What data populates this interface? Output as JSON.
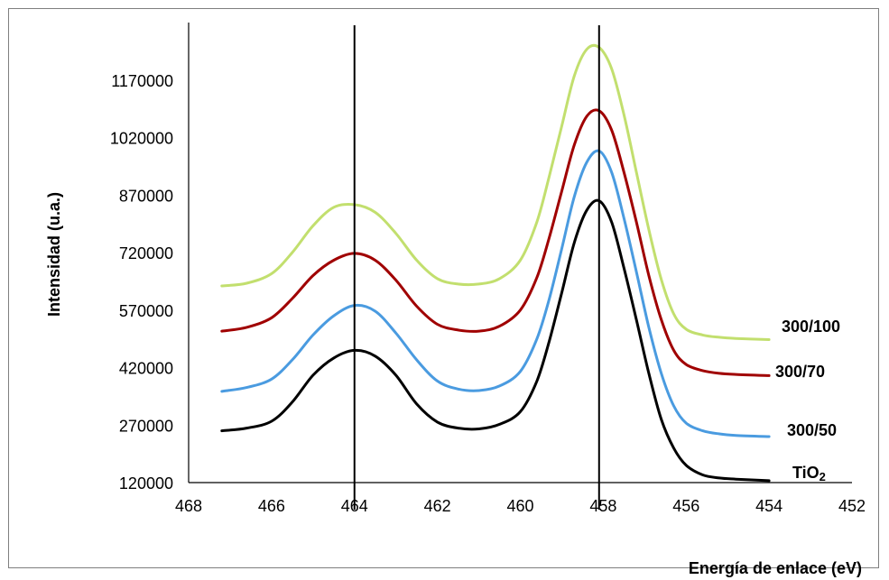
{
  "chart_data": {
    "type": "line",
    "title": "",
    "xlabel": "Energía de enlace (eV)",
    "ylabel": "Intensidad (u.a.)",
    "x_reversed": true,
    "xlim": [
      468,
      452
    ],
    "ylim": [
      120000,
      1320000
    ],
    "xticks": [
      468,
      466,
      464,
      462,
      460,
      458,
      456,
      454,
      452
    ],
    "yticks": [
      120000,
      270000,
      420000,
      570000,
      720000,
      870000,
      1020000,
      1170000
    ],
    "grid": false,
    "vertical_lines": [
      464,
      458.1
    ],
    "series": [
      {
        "name": "TiO2",
        "label_main": "TiO",
        "label_sub": "2",
        "color": "#000000",
        "x": [
          467.2,
          466.6,
          466.0,
          465.5,
          465.0,
          464.5,
          464.0,
          463.5,
          463.0,
          462.5,
          462.0,
          461.5,
          461.0,
          460.5,
          460.0,
          459.6,
          459.3,
          459.0,
          458.7,
          458.4,
          458.1,
          457.8,
          457.5,
          457.2,
          456.9,
          456.6,
          456.3,
          456.0,
          455.6,
          455.2,
          454.8,
          454.0
        ],
        "y": [
          255000,
          262000,
          280000,
          330000,
          400000,
          445000,
          465000,
          450000,
          400000,
          325000,
          278000,
          262000,
          260000,
          272000,
          305000,
          385000,
          490000,
          615000,
          745000,
          830000,
          855000,
          800000,
          680000,
          545000,
          405000,
          285000,
          210000,
          165000,
          140000,
          132000,
          129000,
          125000
        ]
      },
      {
        "name": "300/50",
        "label_main": "300/50",
        "label_sub": "",
        "color": "#4a9be0",
        "x": [
          467.2,
          466.6,
          466.0,
          465.5,
          465.0,
          464.5,
          464.0,
          463.5,
          463.0,
          462.5,
          462.0,
          461.5,
          461.0,
          460.5,
          460.0,
          459.6,
          459.3,
          459.0,
          458.7,
          458.4,
          458.1,
          457.8,
          457.5,
          457.2,
          456.9,
          456.6,
          456.3,
          456.0,
          455.6,
          455.2,
          454.8,
          454.0
        ],
        "y": [
          358000,
          368000,
          390000,
          440000,
          505000,
          555000,
          582000,
          567000,
          510000,
          440000,
          385000,
          364000,
          360000,
          372000,
          410000,
          495000,
          600000,
          730000,
          865000,
          955000,
          985000,
          930000,
          810000,
          670000,
          525000,
          405000,
          320000,
          275000,
          255000,
          247000,
          243000,
          240000
        ]
      },
      {
        "name": "300/70",
        "label_main": "300/70",
        "label_sub": "",
        "color": "#a00000",
        "x": [
          467.2,
          466.6,
          466.0,
          465.5,
          465.0,
          464.5,
          464.0,
          463.5,
          463.0,
          462.5,
          462.0,
          461.5,
          461.0,
          460.5,
          460.0,
          459.6,
          459.3,
          459.0,
          458.7,
          458.4,
          458.1,
          457.8,
          457.5,
          457.2,
          456.9,
          456.6,
          456.3,
          456.0,
          455.6,
          455.2,
          454.8,
          454.0
        ],
        "y": [
          515000,
          525000,
          550000,
          600000,
          660000,
          700000,
          718000,
          700000,
          648000,
          580000,
          533000,
          518000,
          515000,
          528000,
          570000,
          655000,
          760000,
          880000,
          1000000,
          1075000,
          1090000,
          1040000,
          930000,
          800000,
          660000,
          545000,
          465000,
          428000,
          412000,
          405000,
          402000,
          399000
        ]
      },
      {
        "name": "300/100",
        "label_main": "300/100",
        "label_sub": "",
        "color": "#c2df6e",
        "x": [
          467.2,
          466.6,
          466.0,
          465.5,
          465.0,
          464.5,
          464.0,
          463.5,
          463.0,
          462.5,
          462.0,
          461.5,
          461.0,
          460.5,
          460.0,
          459.6,
          459.3,
          459.0,
          458.7,
          458.4,
          458.1,
          457.8,
          457.5,
          457.2,
          456.9,
          456.6,
          456.3,
          456.0,
          455.6,
          455.2,
          454.8,
          454.0
        ],
        "y": [
          633000,
          640000,
          665000,
          720000,
          790000,
          838000,
          845000,
          825000,
          770000,
          700000,
          652000,
          638000,
          638000,
          652000,
          700000,
          800000,
          920000,
          1050000,
          1180000,
          1250000,
          1255000,
          1200000,
          1080000,
          930000,
          780000,
          650000,
          560000,
          520000,
          505000,
          499000,
          496000,
          493000
        ]
      }
    ]
  }
}
